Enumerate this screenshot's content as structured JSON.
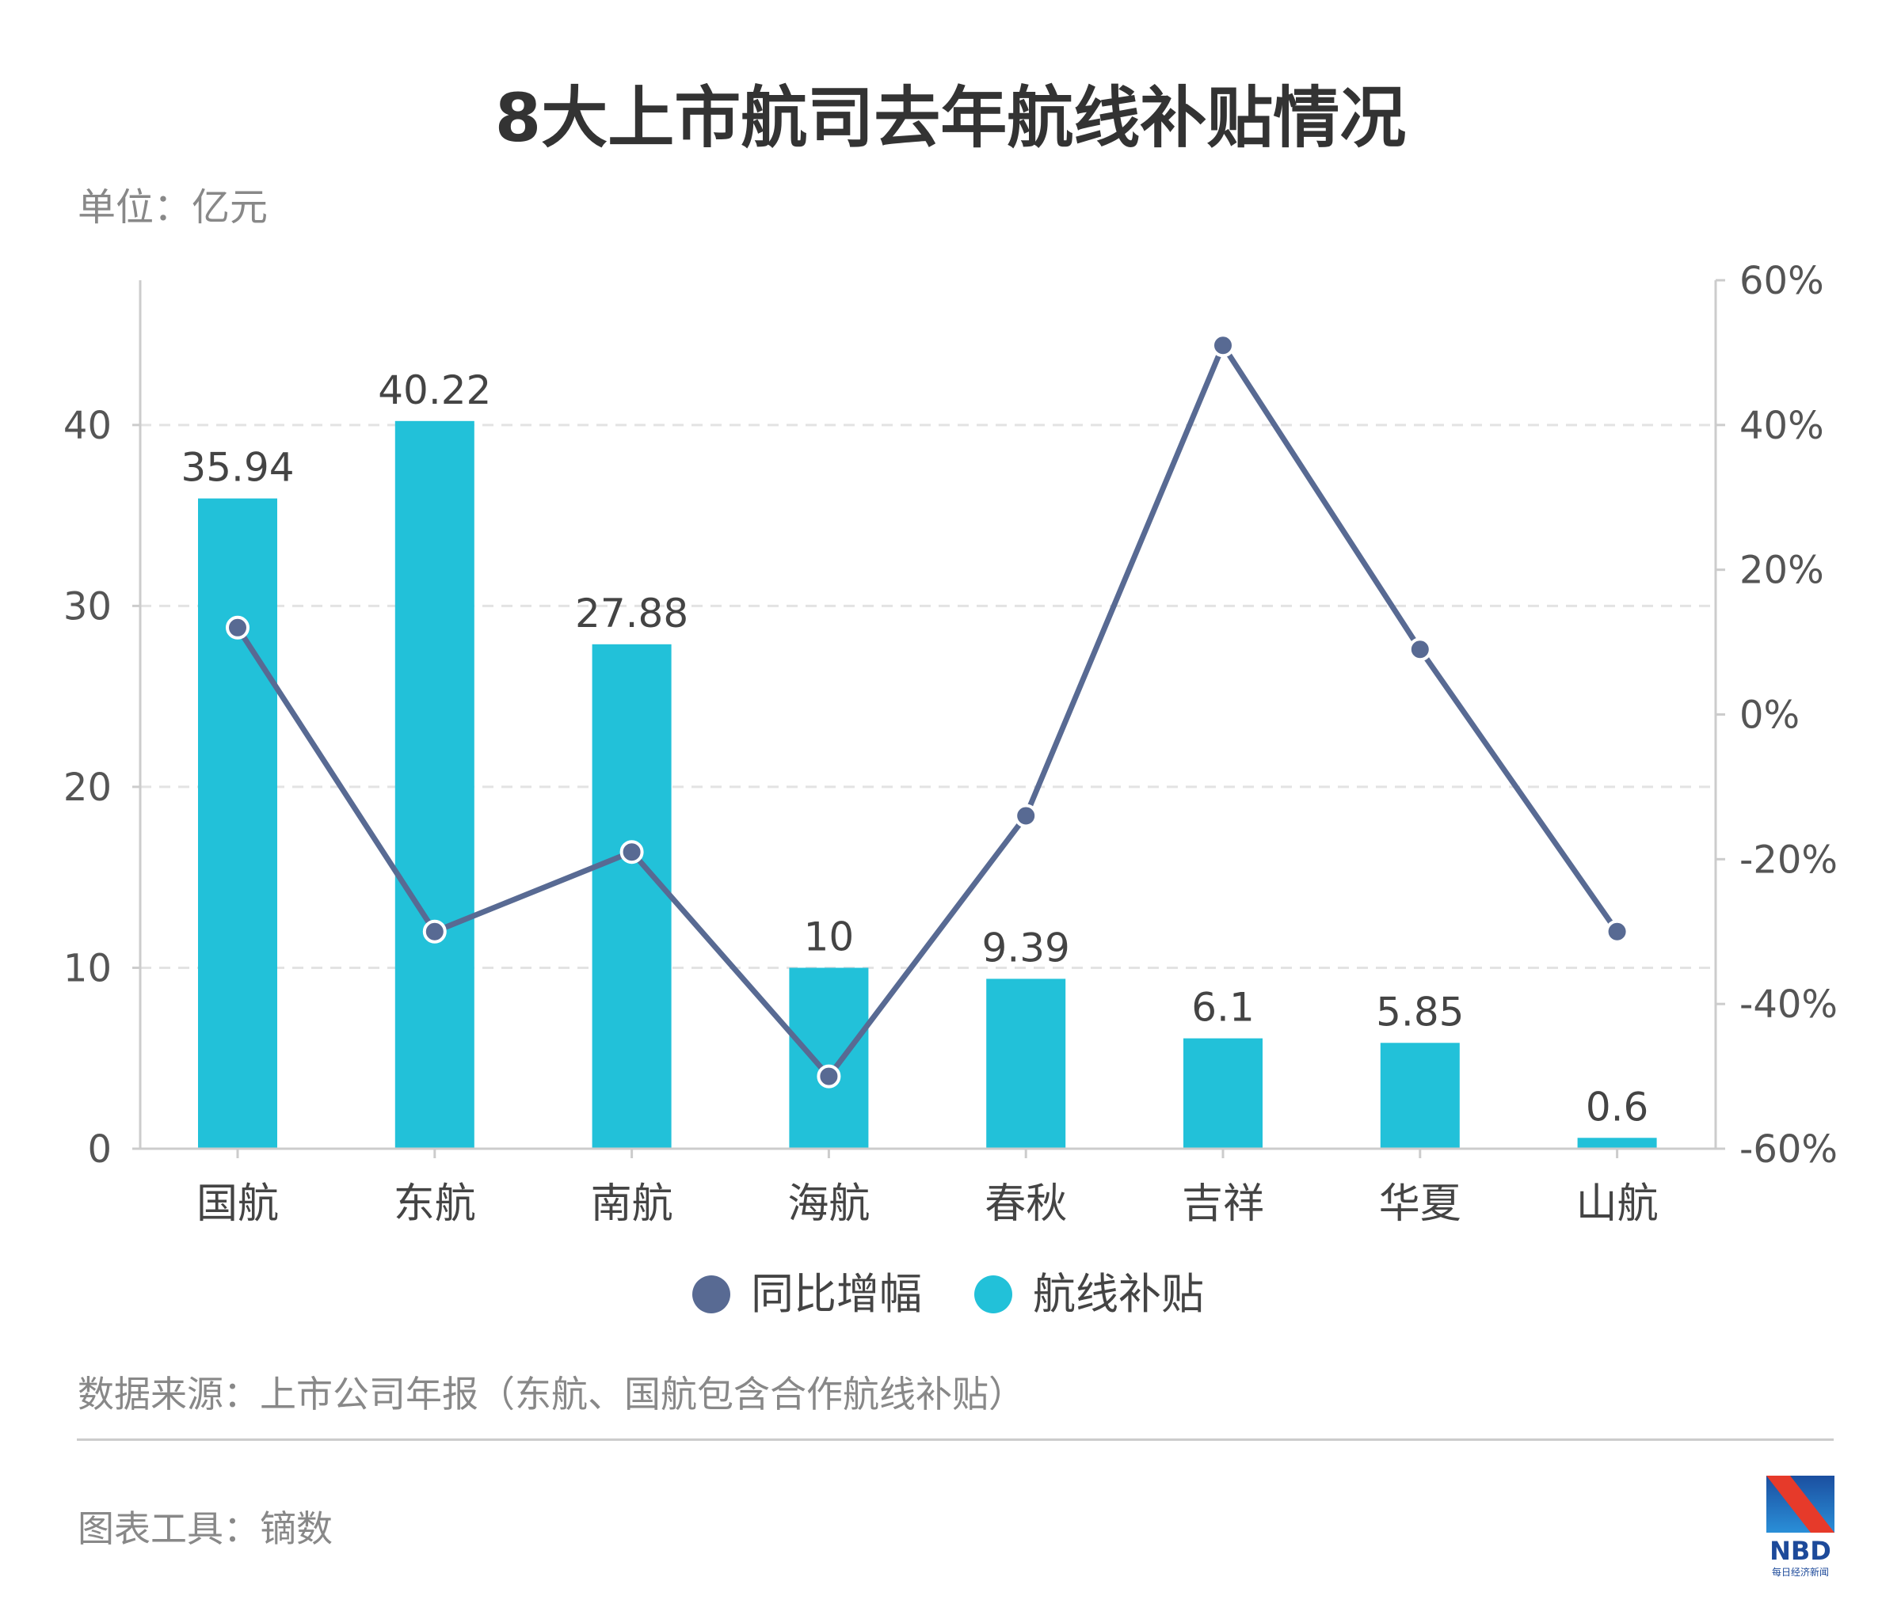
{
  "title": "8大上市航司去年航线补贴情况",
  "unit_label": "单位：亿元",
  "source": "数据来源：上市公司年报（东航、国航包含合作航线补贴）",
  "tool": "图表工具：镝数",
  "logo": {
    "text": "NBD",
    "subtext": "每日经济新闻"
  },
  "colors": {
    "bar": "#22c1d9",
    "line": "#586a93",
    "axis": "#cccccc",
    "grid": "#e3e3e3",
    "text": "#555555"
  },
  "chart_data": {
    "type": "bar+line",
    "categories": [
      "国航",
      "东航",
      "南航",
      "海航",
      "春秋",
      "吉祥",
      "华夏",
      "山航"
    ],
    "series": [
      {
        "name": "同比增幅",
        "type": "line",
        "axis": "right",
        "values": [
          12,
          -30,
          -19,
          -50,
          -14,
          51,
          9,
          -30
        ]
      },
      {
        "name": "航线补贴",
        "type": "bar",
        "axis": "left",
        "values": [
          35.94,
          40.22,
          27.88,
          10,
          9.39,
          6.1,
          5.85,
          0.6
        ],
        "labels": [
          "35.94",
          "40.22",
          "27.88",
          "10",
          "9.39",
          "6.1",
          "5.85",
          "0.6"
        ]
      }
    ],
    "left_axis": {
      "range": [
        0,
        48
      ],
      "ticks": [
        0,
        10,
        20,
        30,
        40
      ],
      "tick_labels": [
        "0",
        "10",
        "20",
        "30",
        "40"
      ]
    },
    "right_axis": {
      "range": [
        -60,
        60
      ],
      "ticks": [
        -60,
        -40,
        -20,
        0,
        20,
        40,
        60
      ],
      "tick_labels": [
        "-60%",
        "-40%",
        "-20%",
        "0%",
        "20%",
        "40%",
        "60%"
      ]
    },
    "grid": true,
    "legend": {
      "position": "bottom",
      "entries": [
        "同比增幅",
        "航线补贴"
      ]
    }
  }
}
